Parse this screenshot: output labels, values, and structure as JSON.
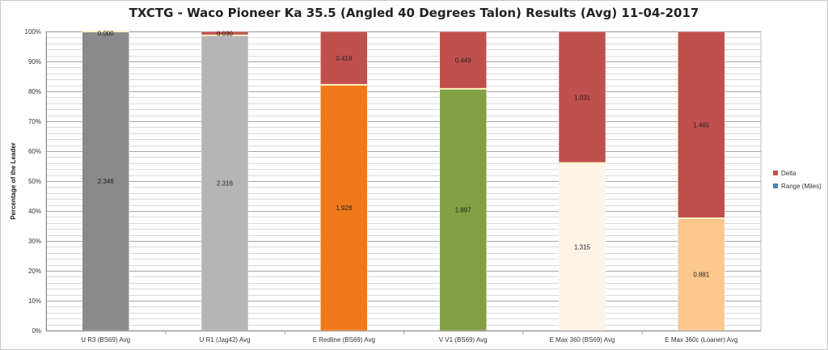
{
  "chart_data": {
    "type": "bar",
    "stacked": true,
    "normalized_percent": true,
    "title": "TXCTG - Waco Pioneer Ka 35.5 (Angled 40 Degrees Talon) Results (Avg) 11-04-2017",
    "ylabel": "Percentage of the Leader",
    "xlabel": "",
    "ylim": [
      0,
      100
    ],
    "yticks": [
      "0%",
      "10%",
      "20%",
      "30%",
      "40%",
      "50%",
      "60%",
      "70%",
      "80%",
      "90%",
      "100%"
    ],
    "grid": true,
    "legend_position": "right",
    "categories": [
      "U R3 (BS69) Avg",
      "U R1 (Jag42) Avg",
      "E Redline (BS69) Avg",
      "V V1 (BS69) Avg",
      "E Max 360 (BS69) Avg",
      "E Max 360c (Loaner) Avg"
    ],
    "series": [
      {
        "name": "Range (Miles)",
        "values": [
          2.346,
          2.316,
          1.928,
          1.897,
          1.315,
          0.881
        ],
        "labels": [
          "2.346",
          "2.316",
          "1.928",
          "1.897",
          "1.315",
          "0.881"
        ],
        "colors": [
          "#8a8a8a",
          "#b5b5b5",
          "#f07a1a",
          "#82a044",
          "#fdf4e6",
          "#fcc88c"
        ]
      },
      {
        "name": "Delta",
        "values": [
          0.0,
          0.03,
          0.418,
          0.449,
          1.031,
          1.465
        ],
        "labels": [
          "0.000",
          "0.030",
          "0.418",
          "0.449",
          "1.031",
          "1.465"
        ],
        "colors": [
          "#c0504d",
          "#c0504d",
          "#c0504d",
          "#c0504d",
          "#c0504d",
          "#c0504d"
        ]
      }
    ],
    "legend": [
      {
        "label": "Delta",
        "color": "#c0504d"
      },
      {
        "label": "Range (Miles)",
        "color": "#4f81bd"
      }
    ]
  }
}
